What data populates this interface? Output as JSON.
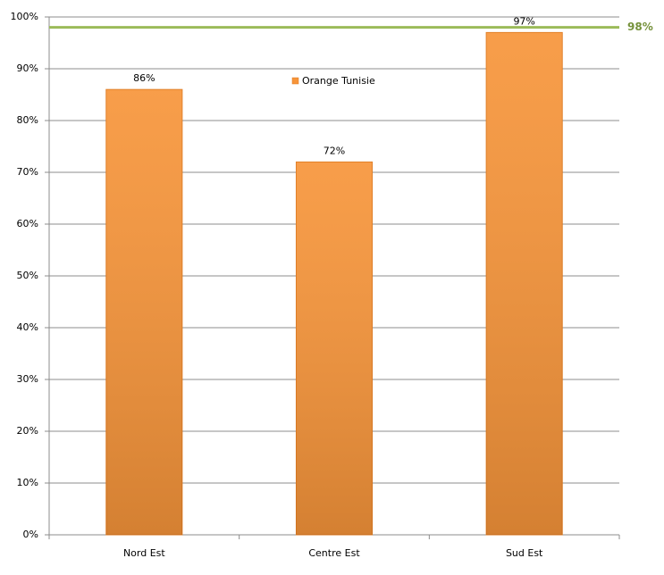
{
  "chart_data": {
    "type": "bar",
    "categories": [
      "Nord Est",
      "Centre Est",
      "Sud Est"
    ],
    "series": [
      {
        "name": "Orange Tunisie",
        "color": "#f7953a",
        "values": [
          86,
          72,
          97
        ],
        "value_labels": [
          "86%",
          "72%",
          "97%"
        ]
      }
    ],
    "ylim": [
      0,
      100
    ],
    "yticks": [
      {
        "value": 0,
        "label": "0%"
      },
      {
        "value": 10,
        "label": "10%"
      },
      {
        "value": 20,
        "label": "20%"
      },
      {
        "value": 30,
        "label": "30%"
      },
      {
        "value": 40,
        "label": "40%"
      },
      {
        "value": 50,
        "label": "50%"
      },
      {
        "value": 60,
        "label": "60%"
      },
      {
        "value": 70,
        "label": "70%"
      },
      {
        "value": 80,
        "label": "80%"
      },
      {
        "value": 90,
        "label": "90%"
      },
      {
        "value": 100,
        "label": "100%"
      }
    ],
    "grid": true,
    "reference_line": {
      "value": 98,
      "label": "98%",
      "color": "#9bbb59"
    }
  }
}
